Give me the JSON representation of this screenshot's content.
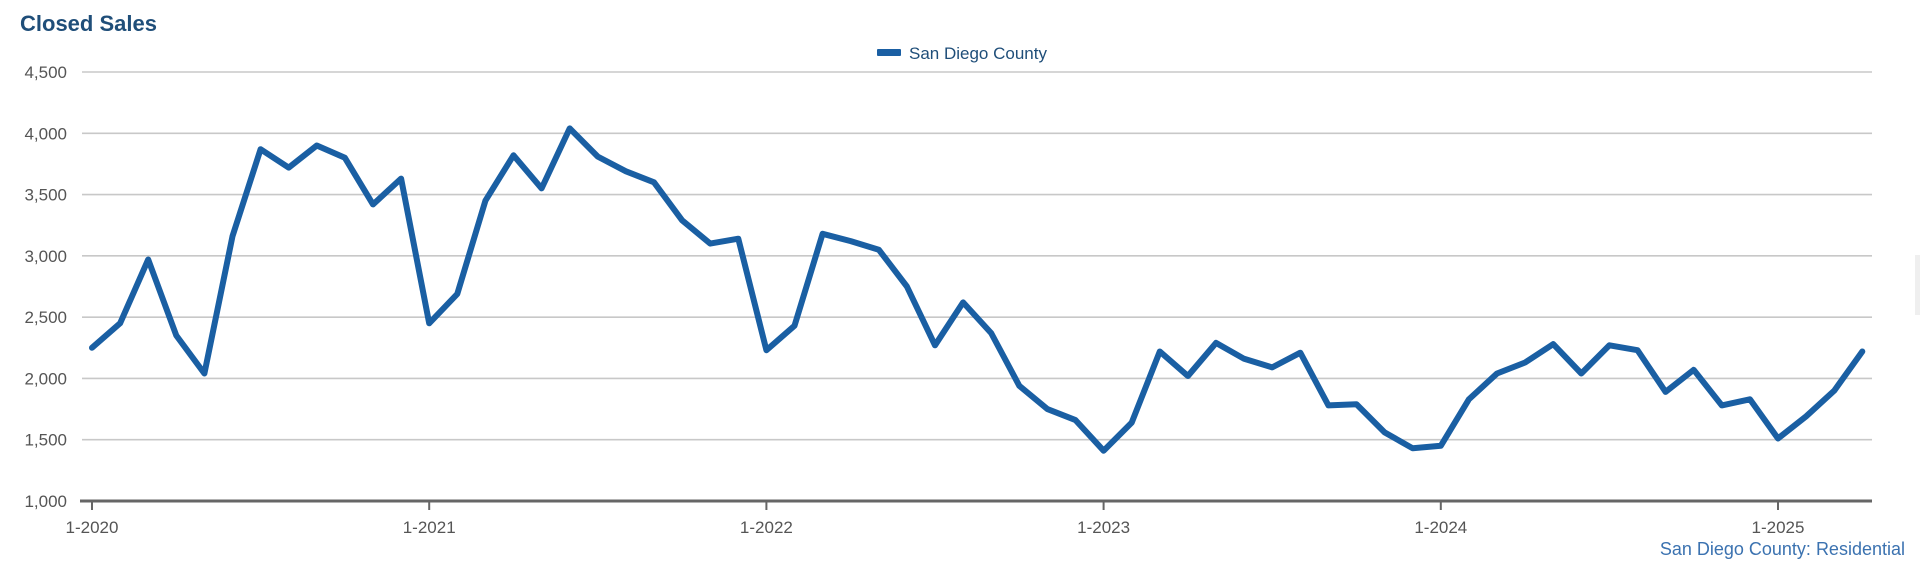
{
  "chart_data": {
    "type": "line",
    "title": "Closed Sales",
    "legend": [
      "San Diego County"
    ],
    "legend_position": "top-center",
    "source_note": "San Diego County: Residential",
    "y_ticks": [
      "1,000",
      "1,500",
      "2,000",
      "2,500",
      "3,000",
      "3,500",
      "4,000",
      "4,500"
    ],
    "ylim": [
      1000,
      4500
    ],
    "x_ticks": [
      "1-2020",
      "1-2021",
      "1-2022",
      "1-2023",
      "1-2024",
      "1-2025"
    ],
    "grid": true,
    "x": [
      "1-2020",
      "2-2020",
      "3-2020",
      "4-2020",
      "5-2020",
      "6-2020",
      "7-2020",
      "8-2020",
      "9-2020",
      "10-2020",
      "11-2020",
      "12-2020",
      "1-2021",
      "2-2021",
      "3-2021",
      "4-2021",
      "5-2021",
      "6-2021",
      "7-2021",
      "8-2021",
      "9-2021",
      "10-2021",
      "11-2021",
      "12-2021",
      "1-2022",
      "2-2022",
      "3-2022",
      "4-2022",
      "5-2022",
      "6-2022",
      "7-2022",
      "8-2022",
      "9-2022",
      "10-2022",
      "11-2022",
      "12-2022",
      "1-2023",
      "2-2023",
      "3-2023",
      "4-2023",
      "5-2023",
      "6-2023",
      "7-2023",
      "8-2023",
      "9-2023",
      "10-2023",
      "11-2023",
      "12-2023",
      "1-2024",
      "2-2024",
      "3-2024",
      "4-2024",
      "5-2024",
      "6-2024",
      "7-2024",
      "8-2024",
      "9-2024",
      "10-2024",
      "11-2024",
      "12-2024",
      "1-2025",
      "2-2025",
      "3-2025",
      "4-2025"
    ],
    "series": [
      {
        "name": "San Diego County",
        "color": "#1a5fa3",
        "values": [
          2250,
          2450,
          2970,
          2350,
          2040,
          3160,
          3870,
          3720,
          3900,
          3800,
          3420,
          3630,
          2450,
          2690,
          3450,
          3820,
          3550,
          4040,
          3810,
          3690,
          3600,
          3290,
          3100,
          3140,
          2230,
          2430,
          3180,
          3120,
          3050,
          2750,
          2270,
          2620,
          2370,
          1940,
          1750,
          1660,
          1410,
          1640,
          2220,
          2020,
          2290,
          2160,
          2090,
          2210,
          1780,
          1790,
          1560,
          1430,
          1450,
          1830,
          2040,
          2130,
          2280,
          2040,
          2270,
          2230,
          1890,
          2070,
          1780,
          1830,
          1510,
          1690,
          1900,
          2220
        ]
      }
    ]
  }
}
